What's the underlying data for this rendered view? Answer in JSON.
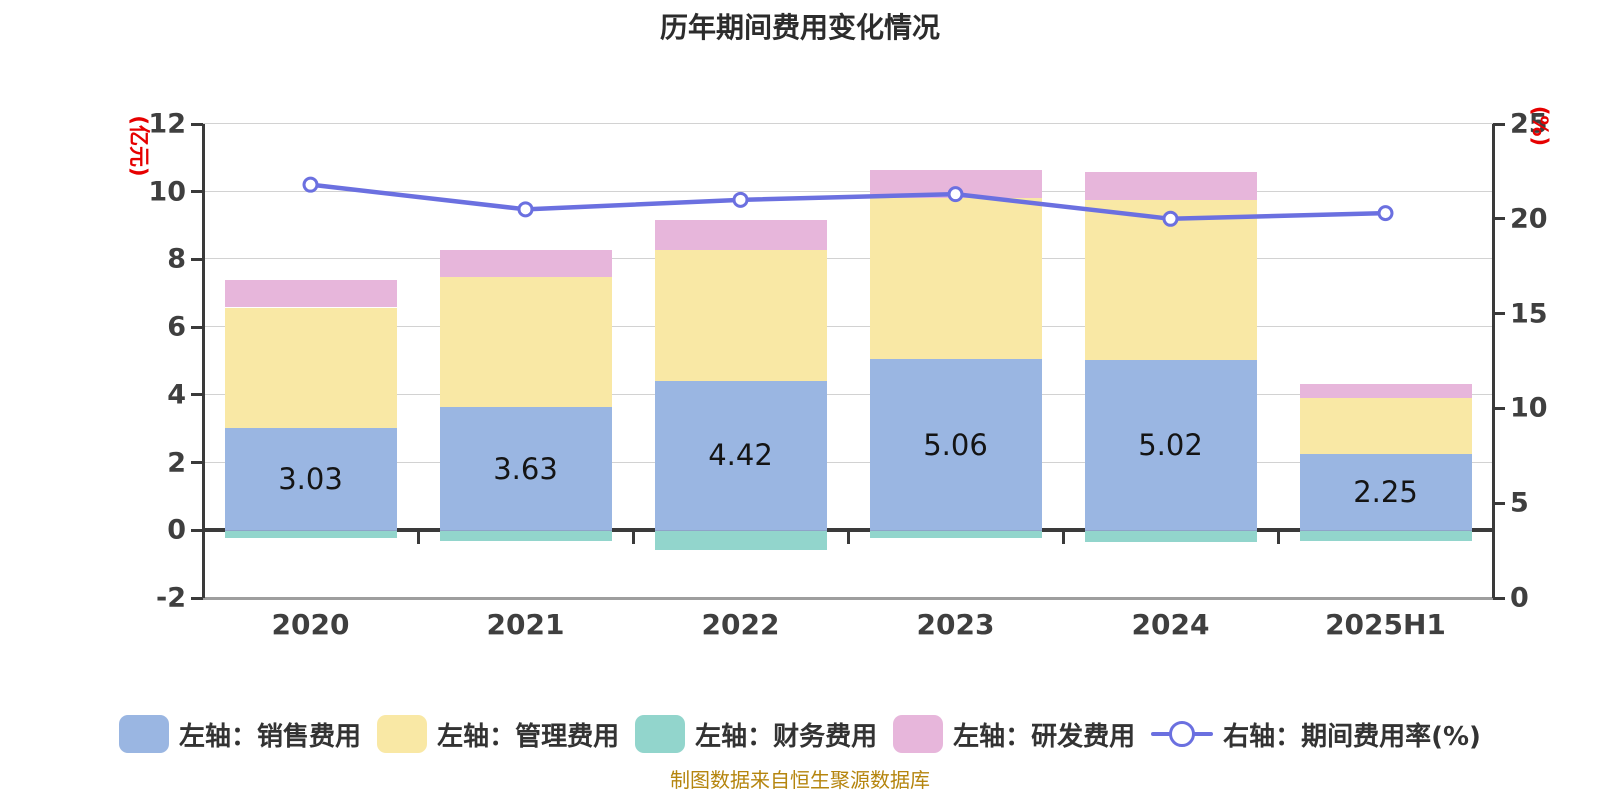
{
  "title": "历年期间费用变化情况",
  "footer": "制图数据来自恒生聚源数据库",
  "chart_data": {
    "type": "bar",
    "subtype": "stacked-bars-with-line-overlay",
    "categories": [
      "2020",
      "2021",
      "2022",
      "2023",
      "2024",
      "2025H1"
    ],
    "series": [
      {
        "key": "sales-expense",
        "name": "左轴：销售费用",
        "type": "bar",
        "axis": "left",
        "color": "#9ab6e2",
        "values": [
          3.03,
          3.63,
          4.42,
          5.06,
          5.02,
          2.25
        ],
        "data_labels": [
          "3.03",
          "3.63",
          "4.42",
          "5.06",
          "5.02",
          "2.25"
        ]
      },
      {
        "key": "admin-expense",
        "name": "左轴：管理费用",
        "type": "bar",
        "axis": "left",
        "color": "#f9e8a5",
        "values": [
          3.55,
          3.85,
          3.87,
          4.74,
          4.73,
          1.66
        ]
      },
      {
        "key": "finance-expense",
        "name": "左轴：财务费用",
        "type": "bar",
        "axis": "left",
        "color": "#92d5cc",
        "values": [
          -0.2,
          -0.28,
          -0.55,
          -0.21,
          -0.31,
          -0.28
        ]
      },
      {
        "key": "rnd-expense",
        "name": "左轴：研发费用",
        "type": "bar",
        "axis": "left",
        "color": "#e7b6db",
        "values": [
          0.8,
          0.8,
          0.88,
          0.85,
          0.83,
          0.4
        ]
      },
      {
        "key": "period-expense-ratio",
        "name": "右轴：期间费用率(%)",
        "type": "line",
        "axis": "right",
        "color": "#6b70e0",
        "marker_fill": "#ffffff",
        "values": [
          21.8,
          20.5,
          21.0,
          21.3,
          20.0,
          20.3
        ]
      }
    ],
    "left_axis": {
      "name": "(亿元)",
      "min": -2,
      "max": 12,
      "ticks": [
        12,
        10,
        8,
        6,
        4,
        2,
        0,
        -2
      ]
    },
    "right_axis": {
      "name": "(%)",
      "min": 0,
      "max": 25,
      "ticks": [
        25,
        20,
        15,
        10,
        5,
        0
      ]
    },
    "legend_position": "bottom",
    "grid": true,
    "colors": {
      "axis_unit_label": "#e60000",
      "axis_tick_text": "#3f3f3f",
      "axis_line": "#3a3a3a",
      "gridline": "#d2d2d2",
      "zero_line": "#3a3a3a",
      "title_text": "#2c2c2c",
      "value_label_text": "#141414",
      "footer_text": "#b5850e",
      "background": "#ffffff"
    }
  }
}
